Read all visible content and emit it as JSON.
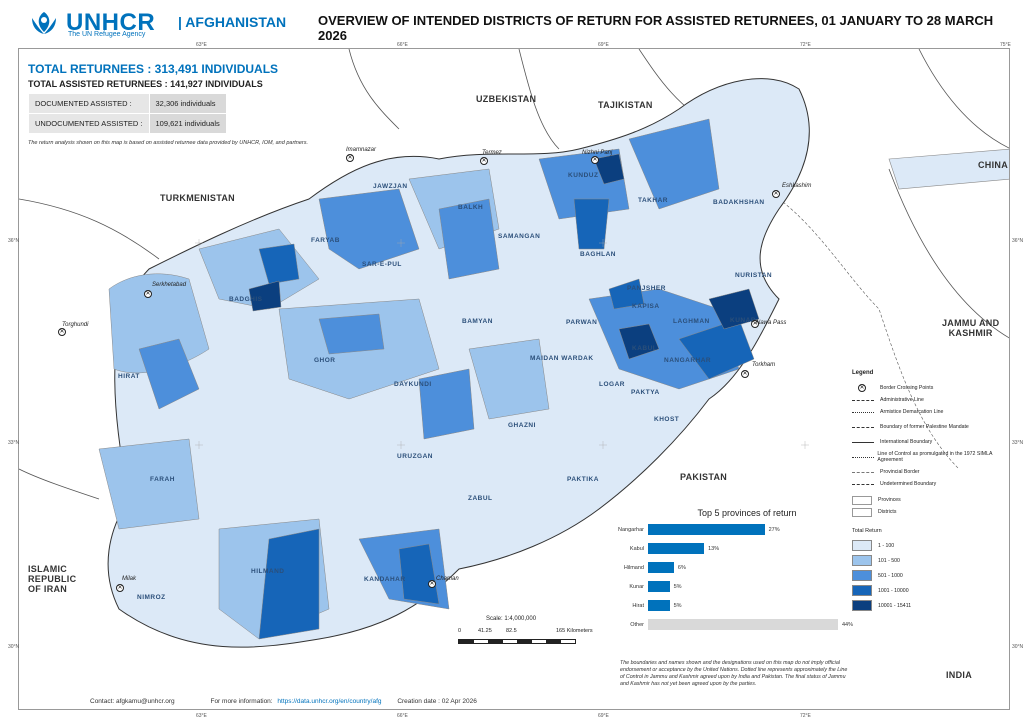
{
  "header": {
    "logo_text": "UNHCR",
    "logo_sub": "The UN Refugee Agency",
    "country": "| AFGHANISTAN",
    "title": "OVERVIEW OF INTENDED DISTRICTS OF RETURN FOR ASSISTED RETURNEES, 01 JANUARY TO 28 MARCH 2026"
  },
  "coords": {
    "top": [
      "63°E",
      "66°E",
      "69°E",
      "72°E",
      "75°E"
    ],
    "bottom": [
      "63°E",
      "66°E",
      "69°E",
      "72°E"
    ],
    "left": [
      "36°N",
      "33°N",
      "30°N"
    ],
    "right": [
      "36°N",
      "33°N",
      "30°N"
    ]
  },
  "stats": {
    "total_returnees": "TOTAL RETURNEES : 313,491 INDIVIDUALS",
    "total_assisted": "TOTAL ASSISTED RETURNEES : 141,927 INDIVIDUALS",
    "rows": [
      {
        "label": "DOCUMENTED ASSISTED :",
        "value": "32,306 individuals"
      },
      {
        "label": "UNDOCUMENTED ASSISTED :",
        "value": "109,621 individuals"
      }
    ],
    "note": "The return analysis shown on this map is based on assisted returnee data provided by UNHCR, IOM, and partners."
  },
  "neighbors": {
    "uzbekistan": "UZBEKISTAN",
    "tajikistan": "TAJIKISTAN",
    "turkmenistan": "TURKMENISTAN",
    "china": "CHINA",
    "jammu": "JAMMU AND\nKASHMIR",
    "pakistan": "PAKISTAN",
    "iran": "ISLAMIC\nREPUBLIC\nOF IRAN",
    "india": "INDIA"
  },
  "provinces": [
    "JAWZJAN",
    "BALKH",
    "KUNDUZ",
    "TAKHAR",
    "BADAKHSHAN",
    "SAMANGAN",
    "FARYAB",
    "SAR-E-PUL",
    "BAGHLAN",
    "NURISTAN",
    "PANJSHER",
    "BADGHIS",
    "KAPISA",
    "KUNAR",
    "BAMYAN",
    "PARWAN",
    "LAGHMAN",
    "GHOR",
    "KABUL",
    "HIRAT",
    "MAIDAN WARDAK",
    "NANGARHAR",
    "DAYKUNDI",
    "LOGAR",
    "PAKTYA",
    "KHOST",
    "GHAZNI",
    "URUZGAN",
    "FARAH",
    "PAKTIKA",
    "ZABUL",
    "HILMAND",
    "KANDAHAR",
    "NIMROZ"
  ],
  "border_points": {
    "imamnazar": "Imamnazar",
    "termez": "Termez",
    "nizhnipanj": "Nizhni Panj",
    "eshkashim": "Eshkashim",
    "serkhetabad": "Serkhetabad",
    "torghundi": "Torghundi",
    "nawa": "Nawa Pass",
    "torkham": "Torkham",
    "milak": "Milak",
    "chaman": "Chaman"
  },
  "chart_data": {
    "type": "bar",
    "title": "Top 5 provinces of return",
    "categories": [
      "Nangarhar",
      "Kabul",
      "Hilmand",
      "Kunar",
      "Hirat",
      "Other"
    ],
    "values": [
      27,
      13,
      6,
      5,
      5,
      44
    ],
    "value_labels": [
      "27%",
      "13%",
      "6%",
      "5%",
      "5%",
      "44%"
    ],
    "unit": "%"
  },
  "scale": {
    "label": "Scale: 1:4,000,000",
    "ticks": [
      "0",
      "41.25",
      "82.5",
      "165 Kilometers"
    ]
  },
  "legend": {
    "title": "Legend",
    "items": [
      "Border Crossing Points",
      "Administrative Line",
      "Armistice Demarcation Line",
      "Boundary of former Palestine Mandate",
      "International Boundary",
      "Line of Control as promulgated in the 1972 SIMLA Agreement",
      "Provincial Border",
      "Undetermined Boundary"
    ],
    "areas": [
      "Provinces",
      "Districts"
    ],
    "total_title": "Total Return",
    "classes": [
      {
        "label": "1 - 100",
        "color": "#dce9f7"
      },
      {
        "label": "101 - 500",
        "color": "#9cc4ec"
      },
      {
        "label": "501 - 1000",
        "color": "#4d8fdb"
      },
      {
        "label": "1001 - 10000",
        "color": "#1665b8"
      },
      {
        "label": "10001 - 15411",
        "color": "#0b3f7f"
      }
    ]
  },
  "disclaimer": "The boundaries and names shown and the designations used on this map do not imply official endorsement or acceptance by the United Nations. Dotted line represents approximately the Line of Control in Jammu and Kashmir agreed upon by India and Pakistan. The final status of Jammu and Kashmir has not yet been agreed upon by the parties.",
  "footer": {
    "contact": "Contact: afgkamu@unhcr.org",
    "info_label": "For more information:",
    "info_link": "https://data.unhcr.org/en/country/afg",
    "created": "Creation date : 02 Apr 2026"
  }
}
